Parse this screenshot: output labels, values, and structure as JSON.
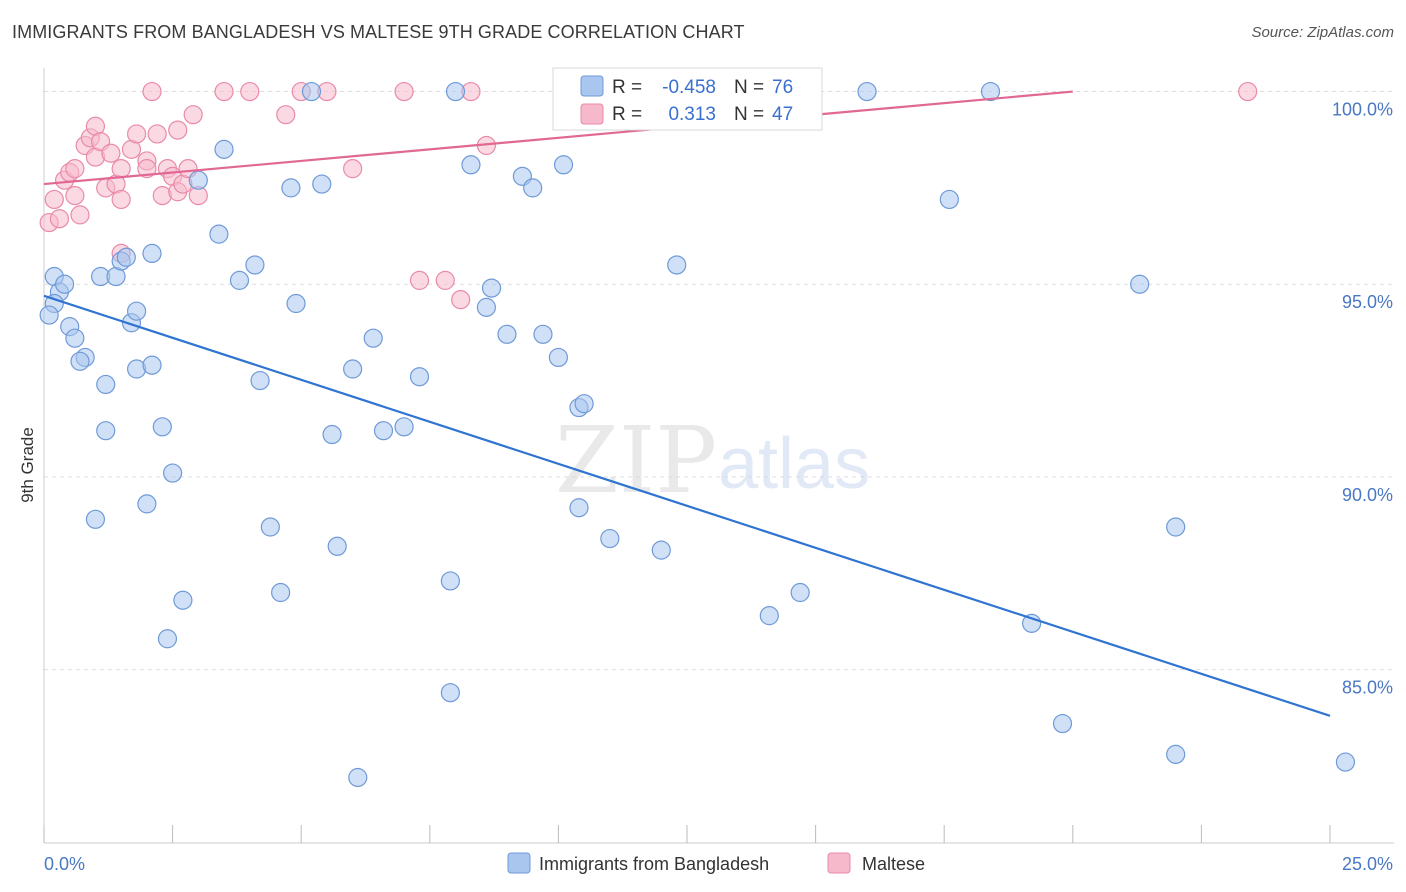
{
  "title": "IMMIGRANTS FROM BANGLADESH VS MALTESE 9TH GRADE CORRELATION CHART",
  "source": "Source: ZipAtlas.com",
  "watermark": {
    "zip": "ZIP",
    "atlas": "atlas"
  },
  "legend_box": {
    "r_label": "R =",
    "n_label": "N =",
    "blue": {
      "r": "-0.458",
      "n": "76"
    },
    "pink": {
      "r": "0.313",
      "n": "47"
    }
  },
  "colors": {
    "blue_fill": "#a9c6ee",
    "blue_stroke": "#6f9ad8",
    "blue_line": "#2f74d0",
    "pink_fill": "#f6b9cc",
    "pink_stroke": "#e98aa9",
    "pink_line": "#e06892",
    "tick_text": "#4a78c4",
    "grid": "#dddddd"
  },
  "chart_data": {
    "type": "scatter",
    "title": "IMMIGRANTS FROM BANGLADESH VS MALTESE 9TH GRADE CORRELATION CHART",
    "xlabel": "",
    "ylabel": "9th Grade",
    "xlim": [
      0,
      25
    ],
    "ylim": [
      80.5,
      100.3
    ],
    "x_tick_labels": [
      "0.0%",
      "25.0%"
    ],
    "y_ticks": [
      100,
      95,
      90,
      85
    ],
    "y_tick_labels": [
      "100.0%",
      "95.0%",
      "90.0%",
      "85.0%"
    ],
    "grid": true,
    "legend_position": "bottom-center",
    "series": [
      {
        "name": "Immigrants from Bangladesh",
        "points": [
          [
            0.2,
            95.2
          ],
          [
            0.3,
            94.8
          ],
          [
            0.2,
            94.5
          ],
          [
            0.4,
            95.0
          ],
          [
            0.1,
            94.2
          ],
          [
            0.5,
            93.9
          ],
          [
            0.6,
            93.6
          ],
          [
            0.8,
            93.1
          ],
          [
            0.7,
            93.0
          ],
          [
            1.1,
            95.2
          ],
          [
            1.4,
            95.2
          ],
          [
            1.5,
            95.6
          ],
          [
            1.6,
            95.7
          ],
          [
            1.7,
            94.0
          ],
          [
            1.8,
            94.3
          ],
          [
            2.1,
            95.8
          ],
          [
            1.2,
            92.4
          ],
          [
            1.8,
            92.8
          ],
          [
            2.1,
            92.9
          ],
          [
            1.2,
            91.2
          ],
          [
            2.3,
            91.3
          ],
          [
            2.5,
            90.1
          ],
          [
            1.0,
            88.9
          ],
          [
            2.0,
            89.3
          ],
          [
            2.7,
            86.8
          ],
          [
            2.4,
            85.8
          ],
          [
            3.4,
            96.3
          ],
          [
            3.5,
            98.5
          ],
          [
            3.0,
            97.7
          ],
          [
            3.8,
            95.1
          ],
          [
            4.1,
            95.5
          ],
          [
            4.2,
            92.5
          ],
          [
            4.4,
            88.7
          ],
          [
            4.6,
            87.0
          ],
          [
            4.8,
            97.5
          ],
          [
            4.9,
            94.5
          ],
          [
            5.2,
            100.0
          ],
          [
            5.4,
            97.6
          ],
          [
            5.6,
            91.1
          ],
          [
            5.7,
            88.2
          ],
          [
            6.0,
            92.8
          ],
          [
            6.1,
            82.2
          ],
          [
            6.4,
            93.6
          ],
          [
            6.6,
            91.2
          ],
          [
            7.0,
            91.3
          ],
          [
            7.3,
            92.6
          ],
          [
            7.9,
            87.3
          ],
          [
            7.9,
            84.4
          ],
          [
            8.0,
            100.0
          ],
          [
            8.3,
            98.1
          ],
          [
            8.6,
            94.4
          ],
          [
            8.7,
            94.9
          ],
          [
            9.0,
            93.7
          ],
          [
            9.3,
            97.8
          ],
          [
            9.5,
            97.5
          ],
          [
            9.7,
            93.7
          ],
          [
            10.0,
            93.1
          ],
          [
            10.1,
            98.1
          ],
          [
            10.4,
            91.8
          ],
          [
            10.5,
            91.9
          ],
          [
            10.4,
            89.2
          ],
          [
            11.0,
            88.4
          ],
          [
            12.0,
            88.1
          ],
          [
            12.3,
            95.5
          ],
          [
            13.1,
            100.0
          ],
          [
            14.1,
            86.4
          ],
          [
            14.7,
            87.0
          ],
          [
            16.0,
            100.0
          ],
          [
            19.2,
            86.2
          ],
          [
            19.8,
            83.6
          ],
          [
            22.0,
            88.7
          ],
          [
            22.0,
            82.8
          ],
          [
            25.3,
            82.6
          ],
          [
            21.3,
            95.0
          ],
          [
            17.6,
            97.2
          ],
          [
            18.4,
            100.0
          ]
        ],
        "trend": [
          [
            0,
            94.7
          ],
          [
            25,
            83.8
          ]
        ]
      },
      {
        "name": "Maltese",
        "points": [
          [
            0.1,
            96.6
          ],
          [
            0.2,
            97.2
          ],
          [
            0.3,
            96.7
          ],
          [
            0.4,
            97.7
          ],
          [
            0.5,
            97.9
          ],
          [
            0.6,
            97.3
          ],
          [
            0.6,
            98.0
          ],
          [
            0.7,
            96.8
          ],
          [
            0.8,
            98.6
          ],
          [
            0.9,
            98.8
          ],
          [
            1.0,
            98.3
          ],
          [
            1.0,
            99.1
          ],
          [
            1.1,
            98.7
          ],
          [
            1.2,
            97.5
          ],
          [
            1.3,
            98.4
          ],
          [
            1.4,
            97.6
          ],
          [
            1.5,
            97.2
          ],
          [
            1.5,
            98.0
          ],
          [
            1.5,
            95.8
          ],
          [
            1.7,
            98.5
          ],
          [
            1.8,
            98.9
          ],
          [
            2.0,
            98.2
          ],
          [
            2.0,
            98.0
          ],
          [
            2.2,
            98.9
          ],
          [
            2.3,
            97.3
          ],
          [
            2.4,
            98.0
          ],
          [
            2.5,
            97.8
          ],
          [
            2.6,
            99.0
          ],
          [
            2.6,
            97.4
          ],
          [
            2.7,
            97.6
          ],
          [
            2.8,
            98.0
          ],
          [
            2.9,
            99.4
          ],
          [
            3.0,
            97.3
          ],
          [
            3.5,
            100.0
          ],
          [
            2.1,
            100.0
          ],
          [
            4.0,
            100.0
          ],
          [
            4.7,
            99.4
          ],
          [
            5.0,
            100.0
          ],
          [
            5.5,
            100.0
          ],
          [
            6.0,
            98.0
          ],
          [
            7.0,
            100.0
          ],
          [
            7.3,
            95.1
          ],
          [
            7.8,
            95.1
          ],
          [
            8.1,
            94.6
          ],
          [
            8.3,
            100.0
          ],
          [
            8.6,
            98.6
          ],
          [
            23.4,
            100.0
          ]
        ],
        "trend": [
          [
            0,
            97.6
          ],
          [
            20,
            100.0
          ]
        ]
      }
    ]
  }
}
